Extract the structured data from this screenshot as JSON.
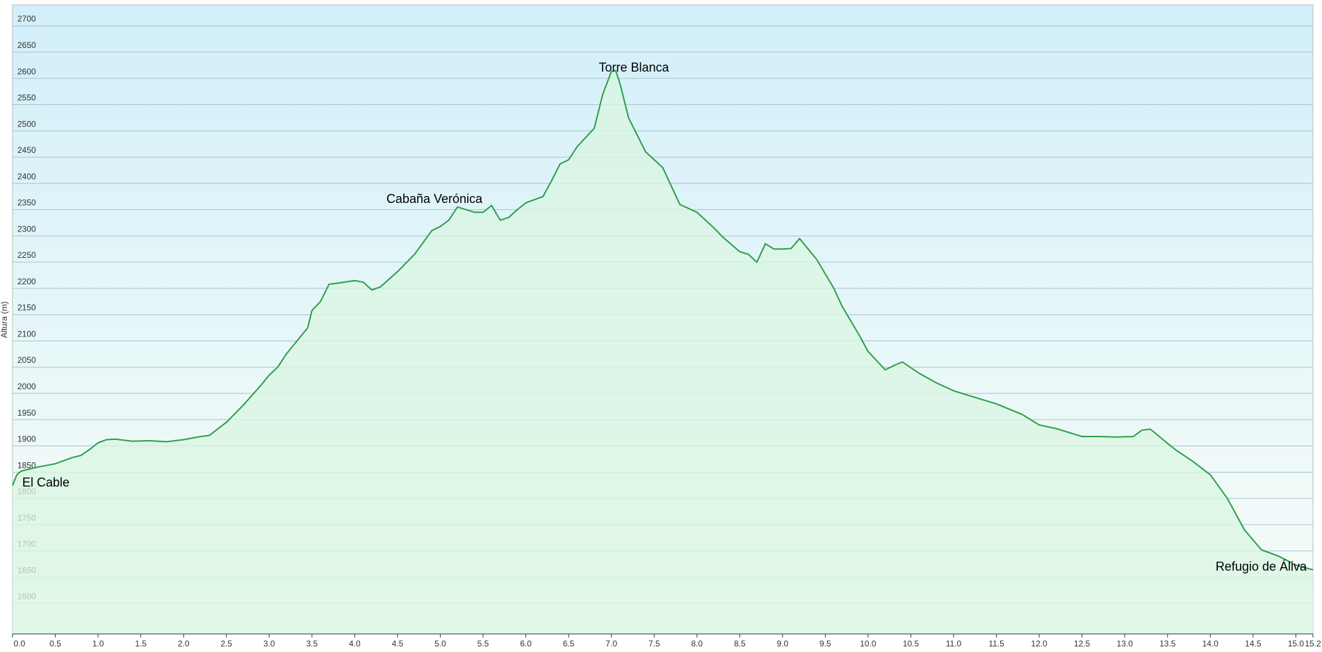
{
  "chart_data": {
    "type": "line",
    "y_label": "Altura (m)",
    "annotations": [
      "El Cable",
      "Cabaña Verónica",
      "Torre Blanca",
      "Refugio de Áliva"
    ],
    "color": "#2e9e4a",
    "fill": "#d9f5e2",
    "grid": true,
    "x": [
      0.0,
      0.05,
      0.1,
      0.3,
      0.5,
      0.7,
      0.8,
      0.9,
      1.0,
      1.1,
      1.2,
      1.4,
      1.6,
      1.8,
      2.0,
      2.2,
      2.3,
      2.5,
      2.7,
      2.9,
      3.0,
      3.1,
      3.2,
      3.4,
      3.45,
      3.5,
      3.6,
      3.7,
      3.8,
      4.0,
      4.1,
      4.2,
      4.3,
      4.5,
      4.7,
      4.9,
      5.0,
      5.1,
      5.2,
      5.3,
      5.4,
      5.5,
      5.6,
      5.7,
      5.8,
      5.9,
      6.0,
      6.2,
      6.3,
      6.4,
      6.5,
      6.6,
      6.8,
      6.9,
      7.0,
      7.05,
      7.1,
      7.2,
      7.4,
      7.6,
      7.8,
      8.0,
      8.2,
      8.3,
      8.5,
      8.6,
      8.7,
      8.8,
      8.9,
      9.0,
      9.1,
      9.2,
      9.4,
      9.6,
      9.7,
      9.9,
      10.0,
      10.2,
      10.3,
      10.4,
      10.6,
      10.8,
      11.0,
      11.2,
      11.5,
      11.8,
      12.0,
      12.2,
      12.5,
      12.7,
      12.9,
      13.1,
      13.2,
      13.3,
      13.5,
      13.6,
      13.8,
      14.0,
      14.2,
      14.4,
      14.6,
      14.8,
      15.0,
      15.2
    ],
    "values": [
      1825,
      1845,
      1852,
      1860,
      1866,
      1878,
      1882,
      1893,
      1906,
      1912,
      1913,
      1909,
      1910,
      1908,
      1912,
      1918,
      1920,
      1945,
      1978,
      2015,
      2035,
      2050,
      2075,
      2115,
      2125,
      2158,
      2175,
      2208,
      2210,
      2215,
      2212,
      2197,
      2203,
      2232,
      2265,
      2310,
      2318,
      2330,
      2355,
      2350,
      2345,
      2345,
      2358,
      2330,
      2335,
      2350,
      2363,
      2375,
      2405,
      2437,
      2445,
      2470,
      2505,
      2570,
      2613,
      2615,
      2590,
      2525,
      2460,
      2430,
      2360,
      2345,
      2315,
      2298,
      2270,
      2265,
      2250,
      2285,
      2275,
      2275,
      2276,
      2295,
      2255,
      2200,
      2165,
      2110,
      2080,
      2045,
      2053,
      2060,
      2038,
      2020,
      2005,
      1995,
      1980,
      1960,
      1940,
      1933,
      1918,
      1918,
      1917,
      1918,
      1930,
      1932,
      1905,
      1892,
      1870,
      1845,
      1800,
      1740,
      1702,
      1690,
      1673,
      1664
    ],
    "xlim": [
      0,
      15.2
    ],
    "ylim": [
      1542,
      2740
    ],
    "yticks": [
      1600,
      1650,
      1700,
      1750,
      1800,
      1850,
      1900,
      1950,
      2000,
      2050,
      2100,
      2150,
      2200,
      2250,
      2300,
      2350,
      2400,
      2450,
      2500,
      2550,
      2600,
      2650,
      2700
    ],
    "xticks": [
      {
        "value": 0,
        "label": "0.0"
      },
      0.5,
      {
        "value": 1,
        "label": "1.0"
      },
      1.5,
      {
        "value": 2,
        "label": "2.0"
      },
      2.5,
      {
        "value": 3,
        "label": "3.0"
      },
      3.5,
      {
        "value": 4,
        "label": "4.0"
      },
      4.5,
      {
        "value": 5,
        "label": "5.0"
      },
      5.5,
      {
        "value": 6,
        "label": "6.0"
      },
      6.5,
      {
        "value": 7,
        "label": "7.0"
      },
      7.5,
      {
        "value": 8,
        "label": "8.0"
      },
      8.5,
      {
        "value": 9,
        "label": "9.0"
      },
      9.5,
      {
        "value": 10,
        "label": "10.0"
      },
      10.5,
      {
        "value": 11,
        "label": "11.0"
      },
      11.5,
      {
        "value": 12,
        "label": "12.0"
      },
      12.5,
      {
        "value": 13,
        "label": "13.0"
      },
      13.5,
      {
        "value": 14,
        "label": "14.0"
      },
      14.5,
      {
        "value": 15,
        "label": "15.0"
      },
      15.2
    ]
  }
}
